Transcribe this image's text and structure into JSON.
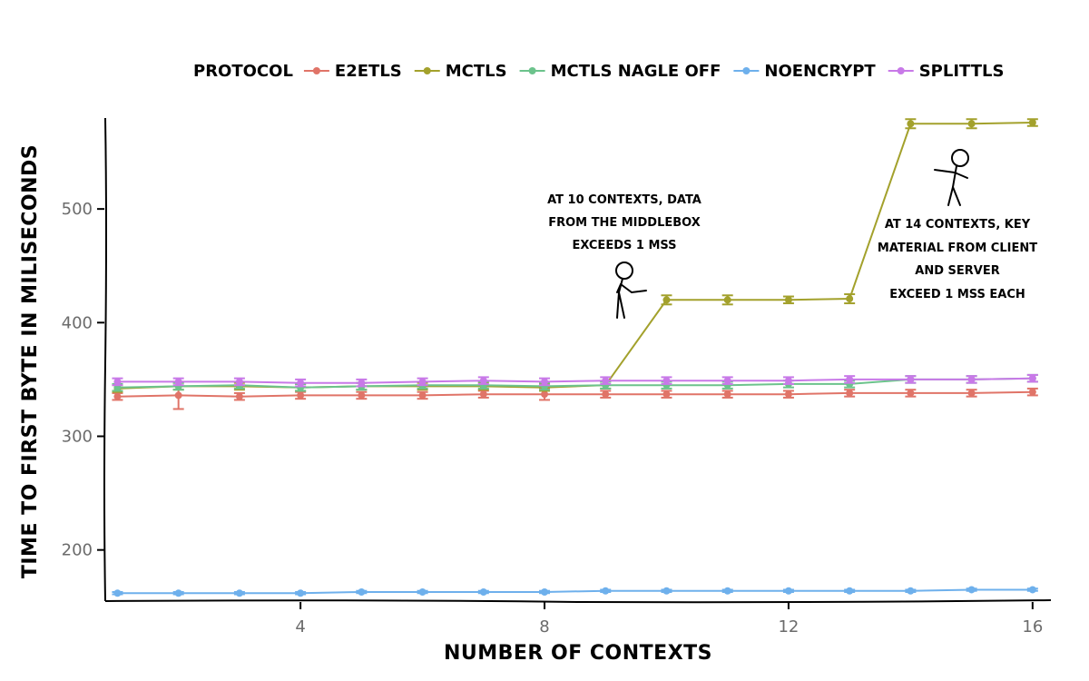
{
  "chart_data": {
    "type": "line",
    "xlabel": "NUMBER OF CONTEXTS",
    "ylabel": "TIME TO FIRST BYTE IN MILISECONDS",
    "xlim": [
      0.8,
      16.3
    ],
    "ylim": [
      155,
      580
    ],
    "xticks": [
      4,
      8,
      12,
      16
    ],
    "yticks": [
      200,
      300,
      400,
      500
    ],
    "grid": false,
    "legend": {
      "title": "PROTOCOL",
      "position": "top"
    },
    "x": [
      1,
      2,
      3,
      4,
      5,
      6,
      7,
      8,
      9,
      10,
      11,
      12,
      13,
      14,
      15,
      16
    ],
    "series": [
      {
        "name": "E2ETLS",
        "color": "#e07468",
        "values": [
          335,
          336,
          335,
          336,
          336,
          336,
          337,
          337,
          337,
          337,
          337,
          337,
          338,
          338,
          338,
          339
        ],
        "error": [
          3,
          12,
          3,
          3,
          3,
          3,
          3,
          5,
          3,
          3,
          3,
          3,
          3,
          3,
          3,
          3
        ]
      },
      {
        "name": "MCTLS",
        "color": "#a3a12c",
        "values": [
          342,
          344,
          344,
          343,
          344,
          344,
          344,
          343,
          345,
          420,
          420,
          420,
          421,
          575,
          575,
          576
        ],
        "error": [
          3,
          3,
          3,
          3,
          3,
          3,
          3,
          3,
          3,
          4,
          4,
          3,
          4,
          4,
          4,
          3
        ]
      },
      {
        "name": "MCTLS NAGLE OFF",
        "color": "#6cc38c",
        "values": [
          343,
          344,
          345,
          343,
          344,
          345,
          345,
          344,
          345,
          345,
          345,
          346,
          346,
          350,
          350,
          351
        ],
        "error": [
          3,
          3,
          3,
          3,
          3,
          3,
          3,
          3,
          3,
          3,
          3,
          3,
          3,
          3,
          3,
          3
        ]
      },
      {
        "name": "NOENCRYPT",
        "color": "#6eb0ec",
        "values": [
          162,
          162,
          162,
          162,
          163,
          163,
          163,
          163,
          164,
          164,
          164,
          164,
          164,
          164,
          165,
          165
        ],
        "error": [
          1,
          1,
          1,
          1,
          1,
          1,
          1,
          1,
          1,
          1,
          1,
          1,
          1,
          1,
          1,
          1
        ]
      },
      {
        "name": "SPLITTLS",
        "color": "#c879e8",
        "values": [
          348,
          348,
          348,
          347,
          347,
          348,
          349,
          348,
          349,
          349,
          349,
          349,
          350,
          350,
          350,
          351
        ],
        "error": [
          3,
          3,
          3,
          3,
          3,
          3,
          3,
          3,
          3,
          3,
          3,
          3,
          3,
          3,
          3,
          3
        ]
      }
    ],
    "annotations": [
      {
        "lines": [
          "AT 10 CONTEXTS, DATA",
          "FROM THE MIDDLEBOX",
          "EXCEEDS 1 MSS"
        ]
      },
      {
        "lines": [
          "AT 14 CONTEXTS, KEY",
          "MATERIAL FROM CLIENT",
          "AND SERVER",
          "EXCEED 1 MSS EACH"
        ]
      }
    ]
  }
}
